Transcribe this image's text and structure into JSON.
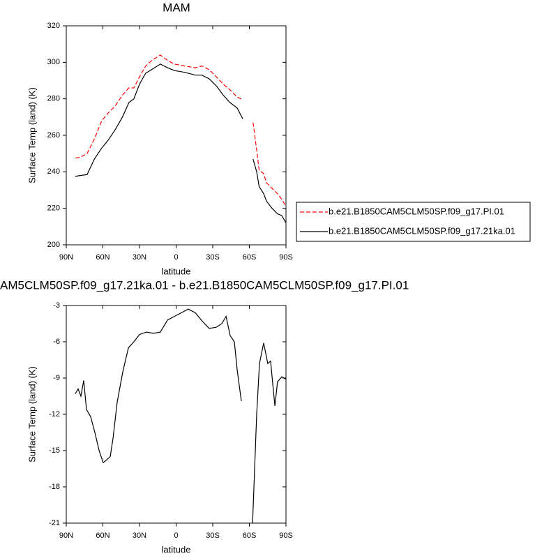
{
  "chart_data": [
    {
      "type": "line",
      "title": "MAM",
      "xlabel": "latitude",
      "ylabel": "Surface Temp (land) (K)",
      "x": [
        82.6,
        78.6,
        72.9,
        67,
        61,
        56,
        50,
        44,
        38.6,
        34.6,
        30,
        25,
        20,
        13,
        7,
        1.4,
        -7,
        -15.7,
        -21,
        -27,
        -33,
        -38.6,
        -44,
        -50,
        -54.6,
        -58,
        -63,
        -66,
        -68,
        -71.7,
        -74,
        -78.6,
        -83,
        -86.6,
        -90
      ],
      "series": [
        {
          "name": "b.e21.B1850CAM5CLM50SP.f09_g17.PI.01",
          "color": "#ff0000",
          "dashed": true,
          "values": [
            247.5,
            248,
            250,
            258,
            268,
            272,
            276,
            282,
            286,
            286,
            292,
            298,
            301,
            304,
            301,
            299,
            298,
            297,
            298,
            296,
            292,
            288,
            285,
            281,
            279.5,
            null,
            267,
            252,
            241,
            239,
            234,
            231,
            228,
            225,
            221
          ]
        },
        {
          "name": "b.e21.B1850CAM5CLM50SP.f09_g17.21ka.01",
          "color": "#000000",
          "dashed": false,
          "values": [
            237.5,
            238,
            238.5,
            247,
            253,
            257,
            263,
            270,
            278,
            280,
            288,
            294,
            296,
            299,
            297,
            295.5,
            294.5,
            293,
            293,
            291,
            287,
            282,
            278,
            275,
            269,
            null,
            247,
            240,
            232,
            228,
            224,
            220,
            217,
            216,
            212
          ]
        }
      ],
      "xlim": [
        90,
        -90
      ],
      "xticks": [
        {
          "value": 90,
          "label": "90N"
        },
        {
          "value": 60,
          "label": "60N"
        },
        {
          "value": 30,
          "label": "30N"
        },
        0,
        {
          "value": -30,
          "label": "30S"
        },
        {
          "value": -60,
          "label": "60S"
        },
        {
          "value": -90,
          "label": "90S"
        }
      ],
      "ylim": [
        200,
        320
      ],
      "yticks": [
        200,
        220,
        240,
        260,
        280,
        300,
        320
      ],
      "legend": "right"
    },
    {
      "type": "line",
      "title": "AM5CLM50SP.f09_g17.21ka.01 - b.e21.B1850CAM5CLM50SP.f09_g17.PI.01",
      "xlabel": "latitude",
      "ylabel": "Surface Temp (land) (K)",
      "x": [
        82.6,
        80.3,
        78,
        75.7,
        73.4,
        70,
        66.6,
        63.1,
        59.7,
        57.4,
        54,
        51.7,
        48.3,
        43.7,
        39.1,
        34.6,
        30,
        24.3,
        18.6,
        12.9,
        7.1,
        1.4,
        -4.3,
        -10,
        -15.7,
        -21.4,
        -27.1,
        -32.9,
        -37.4,
        -40.9,
        -44.3,
        -47.7,
        -50,
        -53.4,
        -57,
        -62.6,
        -66,
        -68.3,
        -71.7,
        -75.1,
        -77.4,
        -80.9,
        -83.1,
        -86.6,
        -90
      ],
      "series": [
        {
          "color": "#000000",
          "dashed": false,
          "values": [
            -10.3,
            -9.9,
            -10.5,
            -9.2,
            -11.6,
            -12.2,
            -13.5,
            -15.0,
            -16.0,
            -15.8,
            -15.5,
            -14,
            -11,
            -8.5,
            -6.5,
            -6.0,
            -5.4,
            -5.2,
            -5.3,
            -5.2,
            -4.2,
            -3.9,
            -3.6,
            -3.3,
            -3.6,
            -4.3,
            -4.9,
            -4.8,
            -4.5,
            -3.9,
            -5.5,
            -6.0,
            -8.3,
            -10.9,
            null,
            -21,
            -12,
            -7.8,
            -6.1,
            -7.8,
            -7.6,
            -11.3,
            -9.3,
            -8.9,
            -9.1
          ]
        }
      ],
      "xlim": [
        90,
        -90
      ],
      "xticks": [
        {
          "value": 90,
          "label": "90N"
        },
        {
          "value": 60,
          "label": "60N"
        },
        {
          "value": 30,
          "label": "30N"
        },
        0,
        {
          "value": -30,
          "label": "30S"
        },
        {
          "value": -60,
          "label": "60S"
        },
        {
          "value": -90,
          "label": "90S"
        }
      ],
      "ylim": [
        -21,
        -3
      ],
      "yticks": [
        -21,
        -18,
        -15,
        -12,
        -9,
        -6,
        -3
      ]
    }
  ]
}
